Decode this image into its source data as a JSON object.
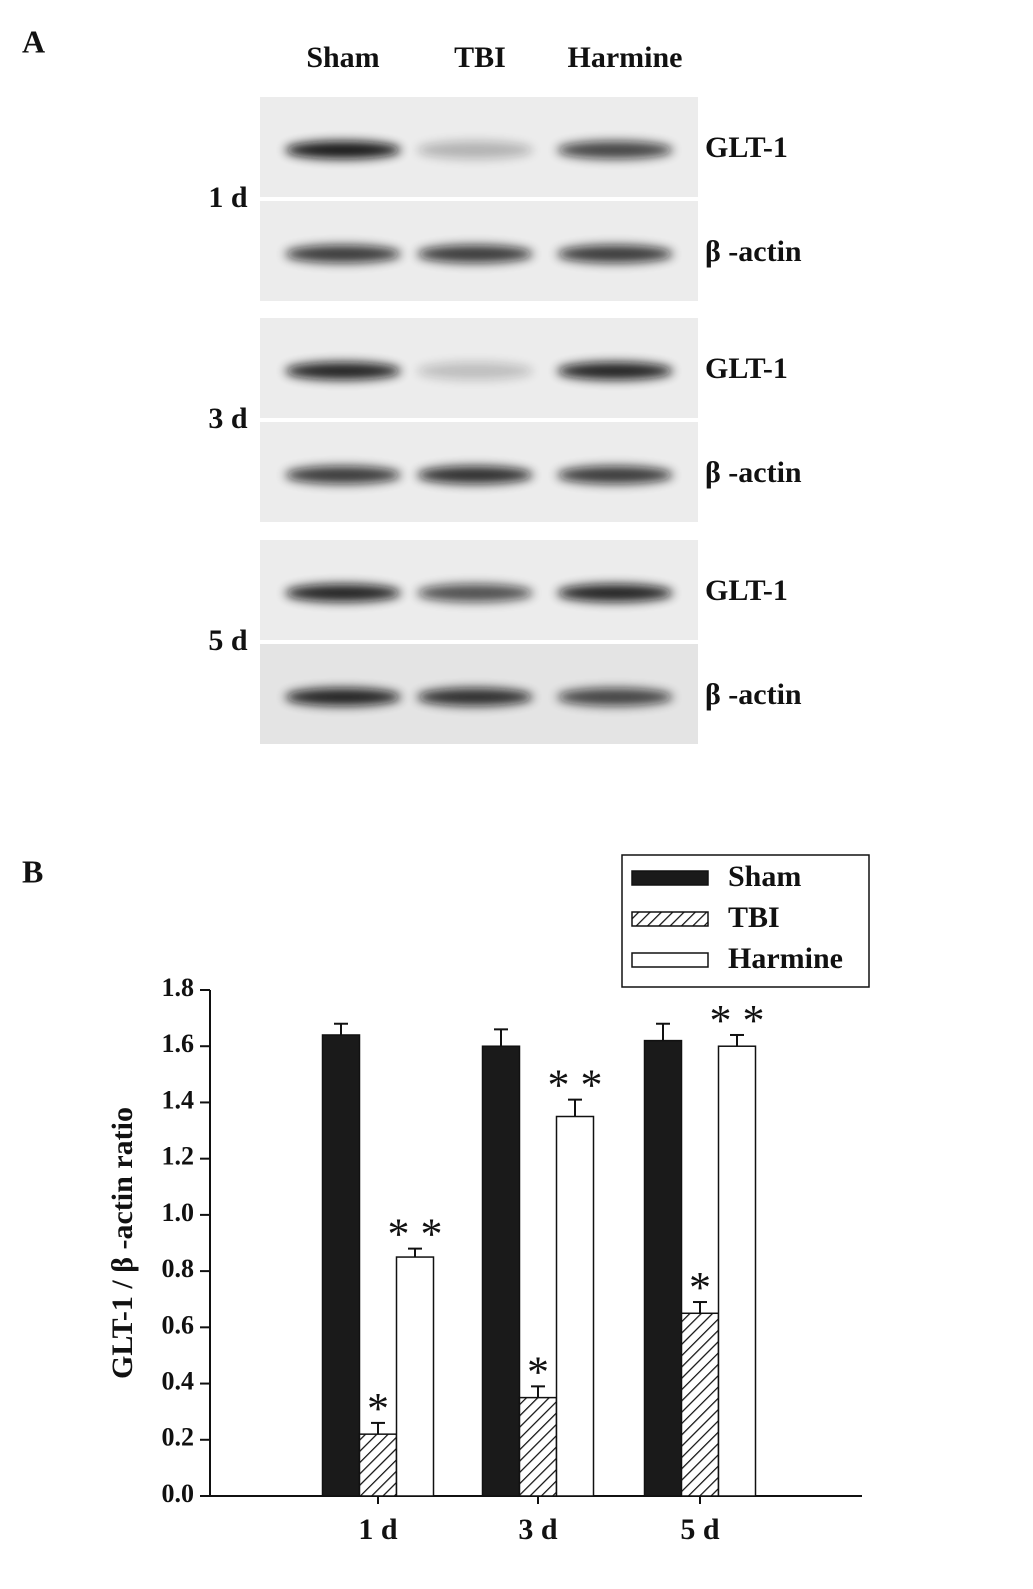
{
  "panel_a": {
    "label": "A",
    "lanes": [
      "Sham",
      "TBI",
      "Harmine"
    ],
    "timepoints": [
      {
        "label": "1 d",
        "proteins": [
          "GLT-1",
          "β -actin"
        ]
      },
      {
        "label": "3 d",
        "proteins": [
          "GLT-1",
          "β -actin"
        ]
      },
      {
        "label": "5 d",
        "proteins": [
          "GLT-1",
          "β -actin"
        ]
      }
    ]
  },
  "chart_data": {
    "type": "bar",
    "panel_label": "B",
    "ylabel": "GLT-1 / β -actin ratio",
    "categories": [
      "1 d",
      "3 d",
      "5 d"
    ],
    "series": [
      {
        "name": "Sham",
        "color": "#1a1a1a",
        "pattern": "solid",
        "values": [
          1.64,
          1.6,
          1.62
        ],
        "errors": [
          0.04,
          0.06,
          0.06
        ]
      },
      {
        "name": "TBI",
        "color": "#1a1a1a",
        "pattern": "hatch",
        "values": [
          0.22,
          0.35,
          0.65
        ],
        "errors": [
          0.04,
          0.04,
          0.04
        ],
        "annotations": [
          "*",
          "*",
          "*"
        ]
      },
      {
        "name": "Harmine",
        "color": "#ffffff",
        "pattern": "solid",
        "values": [
          0.85,
          1.35,
          1.6
        ],
        "errors": [
          0.03,
          0.06,
          0.04
        ],
        "annotations": [
          "* *",
          "* *",
          "* *"
        ]
      }
    ],
    "ylim": [
      0,
      1.8
    ],
    "yticks": [
      {
        "value": 0,
        "label": "0.0"
      },
      0.2,
      0.4,
      0.6,
      0.8,
      {
        "value": 1,
        "label": "1.0"
      },
      1.2,
      1.4,
      1.6,
      1.8
    ]
  }
}
